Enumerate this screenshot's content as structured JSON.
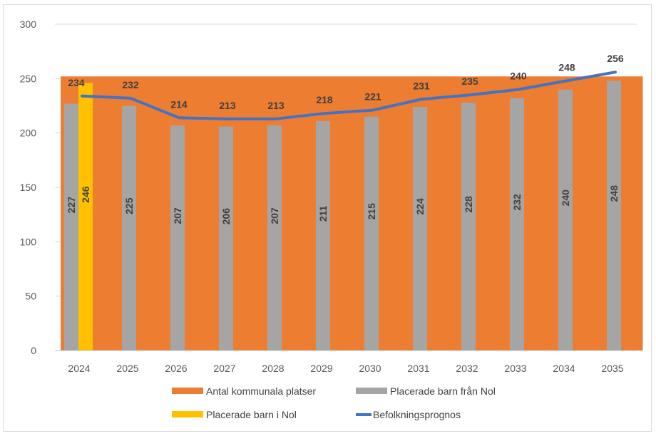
{
  "chart_data": {
    "type": "bar",
    "title": "",
    "xlabel": "",
    "ylabel": "",
    "ylim": [
      0,
      300
    ],
    "yticks": [
      0,
      50,
      100,
      150,
      200,
      250,
      300
    ],
    "grid": true,
    "legend_position": "bottom",
    "categories": [
      "2024",
      "2025",
      "2026",
      "2027",
      "2028",
      "2029",
      "2030",
      "2031",
      "2032",
      "2033",
      "2034",
      "2035"
    ],
    "series": [
      {
        "name": "Antal kommunala platser",
        "kind": "background-bar",
        "color": "#ED7D31",
        "values": [
          252,
          252,
          252,
          252,
          252,
          252,
          252,
          252,
          252,
          252,
          252,
          252
        ]
      },
      {
        "name": "Placerade barn från Nol",
        "kind": "bar",
        "color": "#A5A5A5",
        "values": [
          227,
          225,
          207,
          206,
          207,
          211,
          215,
          224,
          228,
          232,
          240,
          248
        ]
      },
      {
        "name": "Placerade barn i Nol",
        "kind": "bar",
        "color": "#FFC000",
        "values": [
          246,
          null,
          null,
          null,
          null,
          null,
          null,
          null,
          null,
          null,
          null,
          null
        ]
      },
      {
        "name": "Befolkningsprognos",
        "kind": "line",
        "color": "#4472C4",
        "values": [
          234,
          232,
          214,
          213,
          213,
          218,
          221,
          231,
          235,
          240,
          248,
          256
        ]
      }
    ]
  }
}
